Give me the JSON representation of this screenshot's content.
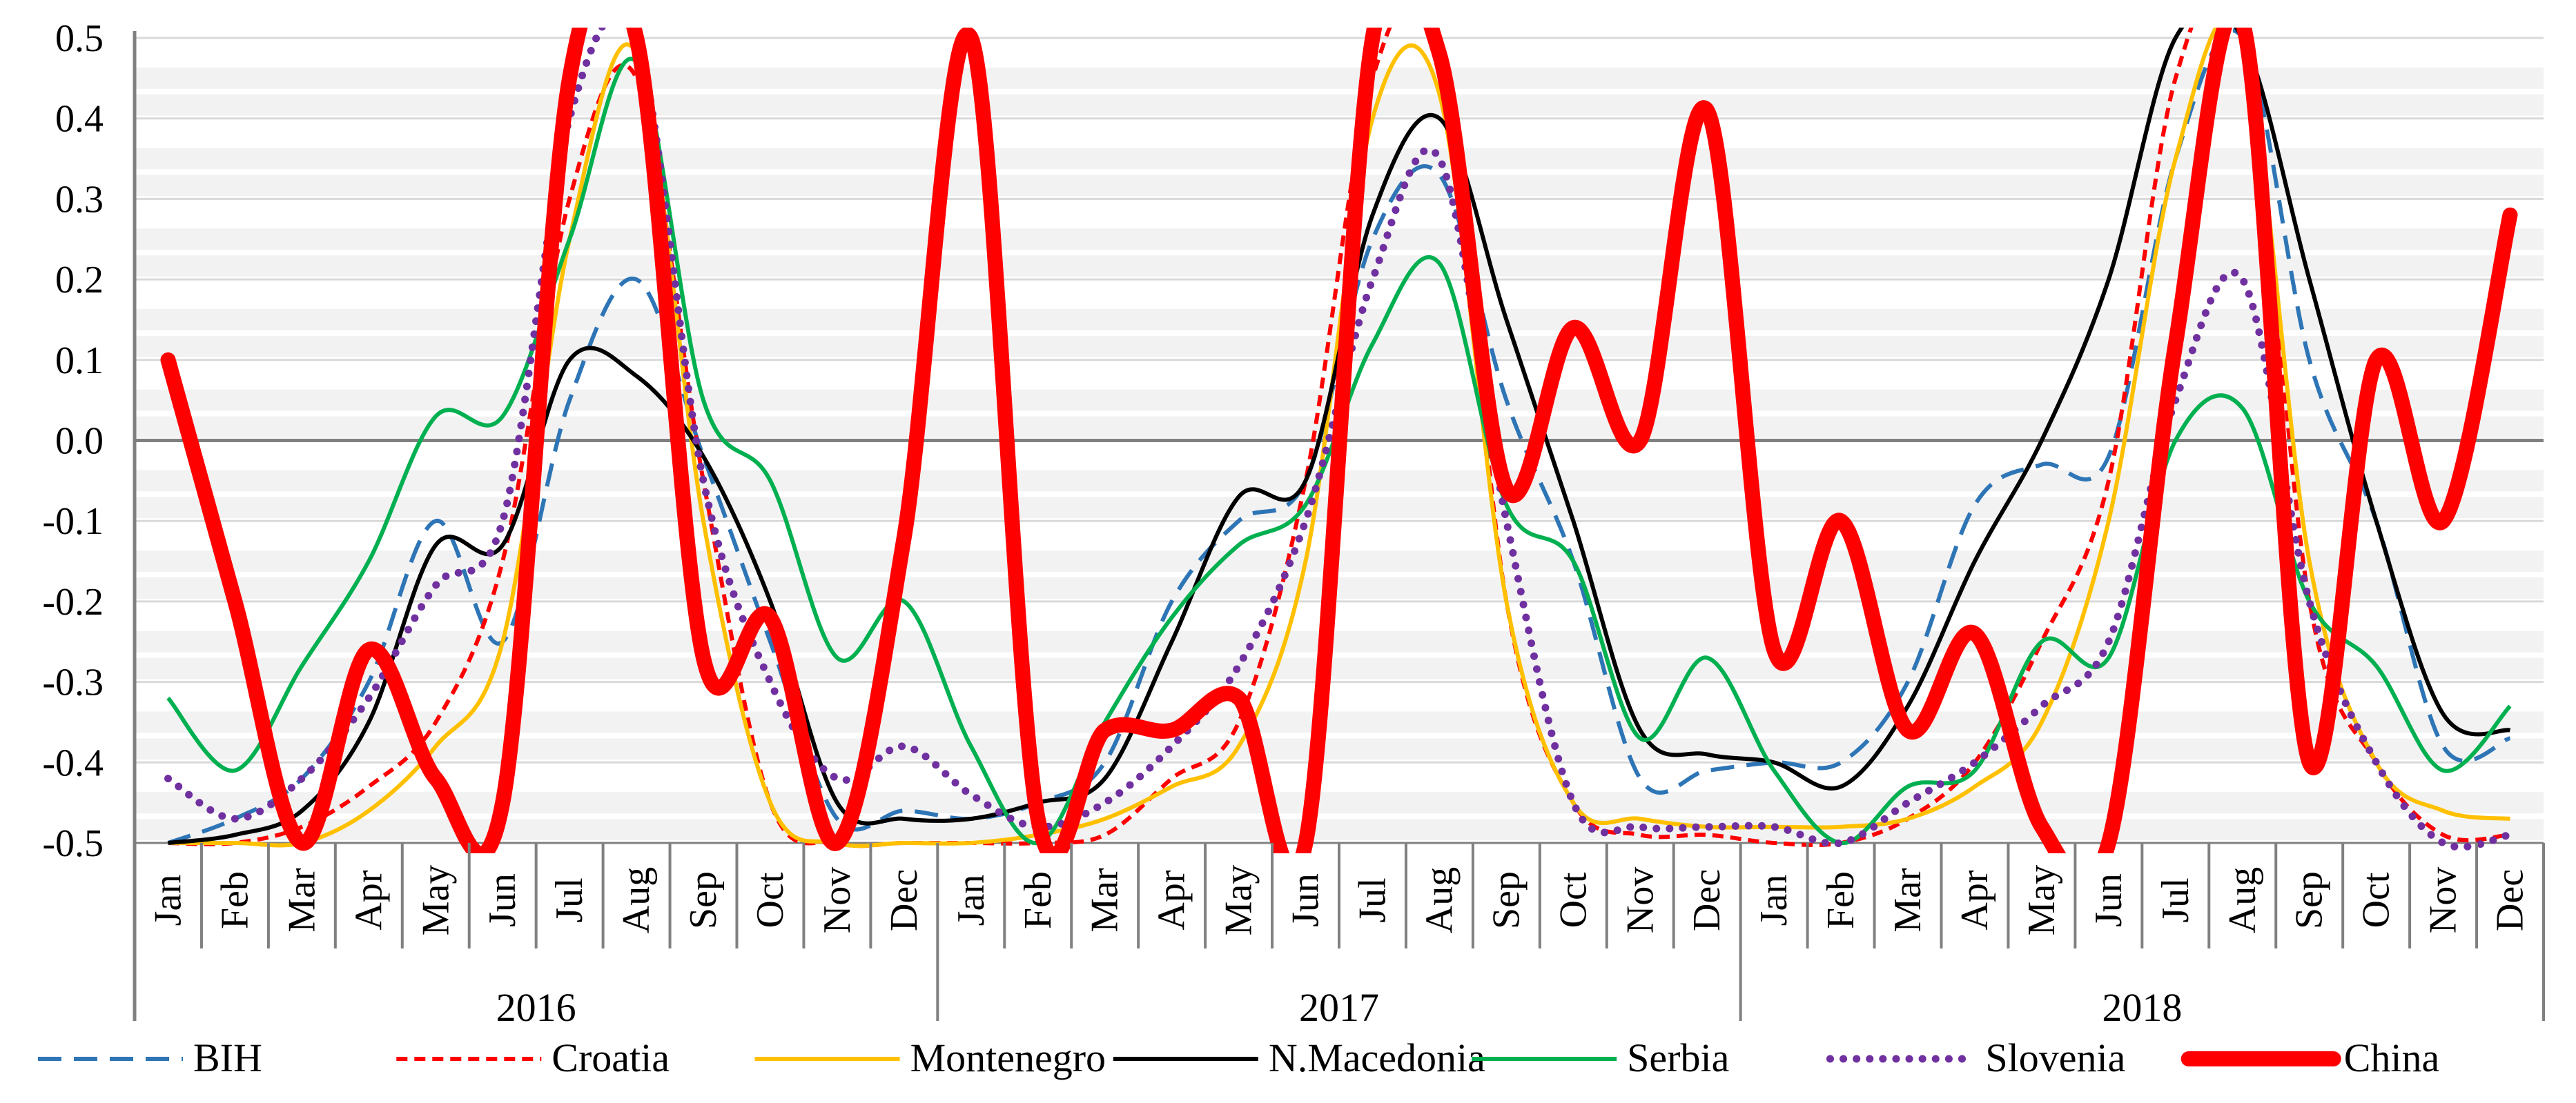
{
  "chart_data": {
    "type": "line",
    "title": "",
    "xlabel": "",
    "ylabel": "",
    "ylim": [
      -0.5,
      0.5
    ],
    "yticks": [
      "-0.5",
      "-0.4",
      "-0.3",
      "-0.2",
      "-0.1",
      "0.0",
      "0.1",
      "0.2",
      "0.3",
      "0.4",
      "0.5"
    ],
    "years": [
      "2016",
      "2017",
      "2018"
    ],
    "months": [
      "Jan",
      "Feb",
      "Mar",
      "Apr",
      "May",
      "Jun",
      "Jul",
      "Aug",
      "Sep",
      "Oct",
      "Nov",
      "Dec"
    ],
    "legend_position": "bottom",
    "series": [
      {
        "name": "BIH",
        "color": "#2E75B6",
        "style": "dashed",
        "values": [
          -0.5,
          -0.47,
          -0.42,
          -0.3,
          -0.1,
          -0.25,
          0.05,
          0.2,
          -0.02,
          -0.25,
          -0.47,
          -0.46,
          -0.47,
          -0.45,
          -0.4,
          -0.2,
          -0.1,
          -0.05,
          0.25,
          0.33,
          0.05,
          -0.15,
          -0.42,
          -0.41,
          -0.4,
          -0.4,
          -0.3,
          -0.08,
          -0.03,
          -0.02,
          0.35,
          0.5,
          0.1,
          -0.1,
          -0.38,
          -0.37
        ]
      },
      {
        "name": "Croatia",
        "color": "#FF0000",
        "style": "dashed",
        "values": [
          -0.5,
          -0.5,
          -0.48,
          -0.43,
          -0.35,
          -0.15,
          0.3,
          0.45,
          -0.05,
          -0.45,
          -0.5,
          -0.5,
          -0.5,
          -0.5,
          -0.49,
          -0.42,
          -0.35,
          -0.05,
          0.45,
          0.5,
          -0.2,
          -0.45,
          -0.49,
          -0.49,
          -0.5,
          -0.5,
          -0.47,
          -0.4,
          -0.25,
          -0.05,
          0.45,
          0.52,
          -0.2,
          -0.4,
          -0.49,
          -0.49
        ]
      },
      {
        "name": "Montenegro",
        "color": "#FFC000",
        "style": "solid",
        "values": [
          -0.5,
          -0.5,
          -0.5,
          -0.46,
          -0.38,
          -0.25,
          0.25,
          0.48,
          -0.1,
          -0.45,
          -0.5,
          -0.5,
          -0.5,
          -0.49,
          -0.47,
          -0.43,
          -0.38,
          -0.15,
          0.4,
          0.43,
          -0.2,
          -0.45,
          -0.47,
          -0.48,
          -0.48,
          -0.48,
          -0.47,
          -0.43,
          -0.35,
          -0.1,
          0.35,
          0.5,
          -0.15,
          -0.4,
          -0.46,
          -0.47
        ]
      },
      {
        "name": "N.Macedonia",
        "color": "#000000",
        "style": "solid",
        "values": [
          -0.5,
          -0.49,
          -0.46,
          -0.35,
          -0.13,
          -0.13,
          0.1,
          0.08,
          -0.02,
          -0.2,
          -0.45,
          -0.47,
          -0.47,
          -0.45,
          -0.42,
          -0.25,
          -0.07,
          -0.05,
          0.28,
          0.4,
          0.15,
          -0.1,
          -0.36,
          -0.39,
          -0.4,
          -0.43,
          -0.33,
          -0.15,
          0.0,
          0.2,
          0.5,
          0.5,
          0.2,
          -0.1,
          -0.34,
          -0.36
        ]
      },
      {
        "name": "Serbia",
        "color": "#00B050",
        "style": "solid",
        "values": [
          -0.32,
          -0.41,
          -0.28,
          -0.15,
          0.03,
          0.03,
          0.25,
          0.47,
          0.05,
          -0.05,
          -0.27,
          -0.2,
          -0.38,
          -0.5,
          -0.35,
          -0.22,
          -0.13,
          -0.08,
          0.12,
          0.22,
          -0.08,
          -0.15,
          -0.37,
          -0.27,
          -0.41,
          -0.5,
          -0.43,
          -0.41,
          -0.25,
          -0.27,
          0.0,
          0.04,
          -0.2,
          -0.28,
          -0.41,
          -0.33
        ]
      },
      {
        "name": "Slovenia",
        "color": "#7030A0",
        "style": "dotted",
        "values": [
          -0.42,
          -0.47,
          -0.42,
          -0.32,
          -0.18,
          -0.1,
          0.4,
          0.5,
          -0.05,
          -0.3,
          -0.42,
          -0.38,
          -0.44,
          -0.48,
          -0.45,
          -0.38,
          -0.28,
          -0.1,
          0.2,
          0.35,
          -0.1,
          -0.45,
          -0.48,
          -0.48,
          -0.48,
          -0.5,
          -0.45,
          -0.4,
          -0.33,
          -0.25,
          0.05,
          0.2,
          -0.2,
          -0.4,
          -0.5,
          -0.49
        ]
      },
      {
        "name": "China",
        "color": "#FF0000",
        "style": "thick",
        "values": [
          0.1,
          -0.2,
          -0.5,
          -0.26,
          -0.42,
          -0.45,
          0.45,
          0.5,
          -0.27,
          -0.22,
          -0.5,
          -0.12,
          0.5,
          -0.47,
          -0.36,
          -0.36,
          -0.32,
          -0.5,
          0.5,
          0.48,
          -0.06,
          0.14,
          0.0,
          0.41,
          -0.26,
          -0.1,
          -0.36,
          -0.24,
          -0.48,
          -0.5,
          0.12,
          0.52,
          -0.4,
          0.1,
          -0.1,
          0.28
        ]
      }
    ]
  }
}
